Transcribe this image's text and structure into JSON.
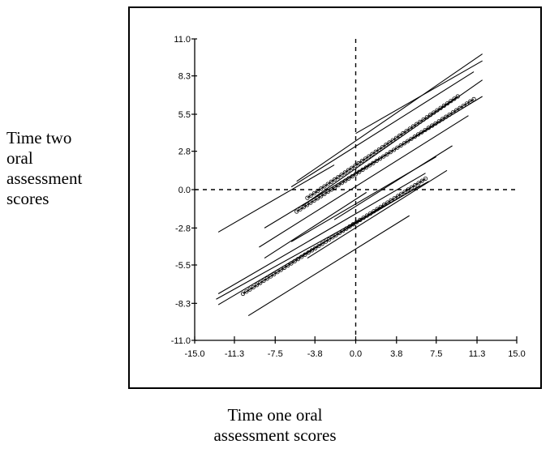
{
  "ylabel_lines": [
    "Time two",
    "oral",
    "assessment",
    "scores"
  ],
  "xlabel_lines": [
    "Time one oral",
    "assessment scores"
  ],
  "chart_data": {
    "type": "line",
    "xlabel": "Time one oral assessment scores",
    "ylabel": "Time two oral assessment scores",
    "xlim": [
      -15.0,
      15.0
    ],
    "ylim": [
      -11.0,
      11.0
    ],
    "xticks": [
      "-15.0",
      "-11.3",
      "-7.5",
      "-3.8",
      "0.0",
      "3.8",
      "7.5",
      "11.3",
      "15.0"
    ],
    "yticks": [
      "11.0",
      "8.3",
      "5.5",
      "2.8",
      "0.0",
      "-2.8",
      "-5.5",
      "-8.3",
      "-11.0"
    ],
    "grid": false,
    "reference_lines": {
      "x": 0.0,
      "y": 0.0,
      "style": "dashed"
    },
    "series": [
      {
        "x": [
          -5.5,
          11.8
        ],
        "y": [
          0.6,
          9.9
        ]
      },
      {
        "x": [
          0.0,
          11.8
        ],
        "y": [
          4.1,
          9.4
        ]
      },
      {
        "x": [
          -6.0,
          11.0
        ],
        "y": [
          0.2,
          8.6
        ]
      },
      {
        "x": [
          -4.5,
          9.5
        ],
        "y": [
          -0.6,
          6.8
        ],
        "marked": true
      },
      {
        "x": [
          -5.0,
          11.8
        ],
        "y": [
          -1.2,
          8.0
        ]
      },
      {
        "x": [
          -5.5,
          11.0
        ],
        "y": [
          -1.6,
          6.6
        ],
        "marked": true
      },
      {
        "x": [
          -8.5,
          11.8
        ],
        "y": [
          -2.8,
          6.8
        ]
      },
      {
        "x": [
          -12.8,
          -2.0
        ],
        "y": [
          -3.1,
          1.8
        ]
      },
      {
        "x": [
          -9.0,
          10.5
        ],
        "y": [
          -4.2,
          5.4
        ]
      },
      {
        "x": [
          -8.5,
          1.0
        ],
        "y": [
          -5.0,
          -0.2
        ]
      },
      {
        "x": [
          -2.0,
          9.0
        ],
        "y": [
          -2.2,
          3.2
        ]
      },
      {
        "x": [
          -6.0,
          7.5
        ],
        "y": [
          -3.8,
          2.4
        ]
      },
      {
        "x": [
          -4.5,
          8.5
        ],
        "y": [
          -5.0,
          1.4
        ]
      },
      {
        "x": [
          -12.8,
          6.5
        ],
        "y": [
          -7.6,
          1.2
        ]
      },
      {
        "x": [
          -10.5,
          6.5
        ],
        "y": [
          -7.6,
          0.8
        ],
        "marked": true
      },
      {
        "x": [
          -13.0,
          6.8
        ],
        "y": [
          -8.0,
          0.6
        ]
      },
      {
        "x": [
          -12.8,
          6.0
        ],
        "y": [
          -8.4,
          0.3
        ]
      },
      {
        "x": [
          -10.0,
          5.0
        ],
        "y": [
          -9.2,
          -1.9
        ]
      }
    ]
  }
}
